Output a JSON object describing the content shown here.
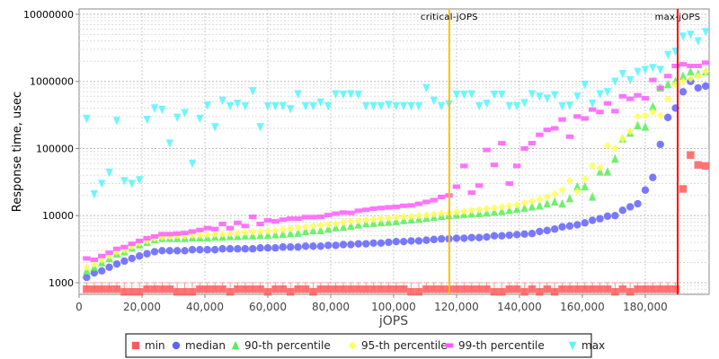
{
  "chart_data": {
    "type": "scatter",
    "title": "",
    "xlabel": "jOPS",
    "ylabel": "Response time, usec",
    "yscale": "log",
    "xlim": [
      0,
      200300
    ],
    "ylim": [
      670,
      12000000
    ],
    "grid": true,
    "legend_position": "bottom",
    "x_ticks": [
      0,
      20000,
      40000,
      60000,
      80000,
      100000,
      120000,
      140000,
      160000,
      180000
    ],
    "x_tick_labels": [
      "0",
      "20,000",
      "40,000",
      "60,000",
      "80,000",
      "100,000",
      "120,000",
      "140,000",
      "160,000",
      "180,000"
    ],
    "y_ticks": [
      1000,
      10000,
      100000,
      1000000,
      10000000
    ],
    "y_tick_labels": [
      "1000",
      "10000",
      "100000",
      "1000000",
      "10000000"
    ],
    "annotations": [
      {
        "label": "critical-jOPS",
        "x": 117700,
        "color": "#ffc000"
      },
      {
        "label": "max-jOPS",
        "x": 190300,
        "color": "#ff0000"
      }
    ],
    "x_step": 2400,
    "series": [
      {
        "name": "min",
        "marker": "square",
        "color": "#ff5a5a",
        "values": [
          800,
          800,
          800,
          800,
          800,
          730,
          730,
          730,
          800,
          800,
          800,
          800,
          730,
          730,
          730,
          800,
          800,
          800,
          800,
          730,
          800,
          800,
          800,
          800,
          730,
          800,
          800,
          730,
          800,
          800,
          730,
          800,
          800,
          800,
          800,
          800,
          800,
          800,
          800,
          800,
          800,
          800,
          800,
          730,
          730,
          800,
          800,
          800,
          800,
          800,
          800,
          800,
          800,
          800,
          730,
          730,
          800,
          800,
          730,
          800,
          730,
          800,
          730,
          800,
          800,
          800,
          800,
          800,
          800,
          800,
          730,
          800,
          730,
          800,
          800,
          800,
          800,
          800,
          800,
          25000,
          80000,
          57000,
          55000
        ]
      },
      {
        "name": "median",
        "marker": "circle",
        "color": "#6262ff",
        "values": [
          1200,
          1400,
          1500,
          1700,
          1900,
          2100,
          2300,
          2500,
          2700,
          2900,
          3000,
          3000,
          3000,
          3000,
          3100,
          3100,
          3100,
          3100,
          3200,
          3200,
          3200,
          3200,
          3200,
          3300,
          3300,
          3300,
          3400,
          3400,
          3400,
          3500,
          3500,
          3500,
          3600,
          3600,
          3700,
          3700,
          3800,
          3800,
          3900,
          3900,
          4000,
          4100,
          4100,
          4200,
          4200,
          4300,
          4400,
          4500,
          4500,
          4600,
          4600,
          4700,
          4700,
          4800,
          5000,
          5000,
          5100,
          5200,
          5300,
          5400,
          5800,
          6000,
          6300,
          6800,
          7000,
          7300,
          7800,
          8500,
          9000,
          9800,
          10000,
          12000,
          13500,
          15000,
          24000,
          37000,
          115000,
          290000,
          400000,
          700000,
          1000000,
          800000,
          850000
        ]
      },
      {
        "name": "90-th percentile",
        "marker": "triangle-up",
        "color": "#55ee55",
        "values": [
          1500,
          1700,
          2000,
          2300,
          2700,
          2900,
          3300,
          3700,
          4000,
          4400,
          4600,
          4600,
          4600,
          4600,
          4700,
          4700,
          4700,
          4800,
          4800,
          4900,
          4900,
          5000,
          5000,
          5100,
          5100,
          5200,
          5300,
          5400,
          5500,
          5800,
          6000,
          6000,
          6300,
          6600,
          6700,
          7000,
          7300,
          7600,
          7700,
          7900,
          8000,
          8200,
          8500,
          8700,
          8900,
          9200,
          9500,
          9800,
          10000,
          10300,
          10500,
          10600,
          10800,
          11000,
          11300,
          11600,
          12000,
          12500,
          13000,
          13500,
          14000,
          15000,
          16000,
          15000,
          18000,
          27000,
          27000,
          19000,
          45000,
          45000,
          70000,
          140000,
          170000,
          220000,
          210000,
          420000,
          800000,
          900000,
          1000000,
          1200000,
          1400000,
          1300000,
          1400000
        ]
      },
      {
        "name": "95-th percentile",
        "marker": "diamond",
        "color": "#ffff55",
        "values": [
          1700,
          1900,
          2200,
          2500,
          2900,
          3100,
          3500,
          3900,
          4200,
          4600,
          4800,
          4900,
          5000,
          5000,
          5100,
          5100,
          5200,
          5300,
          5300,
          5400,
          5500,
          5600,
          5700,
          5800,
          5900,
          6000,
          6200,
          6400,
          6600,
          6800,
          7000,
          7200,
          7400,
          7600,
          7900,
          8200,
          8400,
          8600,
          8800,
          9000,
          9200,
          9400,
          9600,
          9800,
          10000,
          10200,
          10500,
          10800,
          11000,
          11300,
          11600,
          12000,
          12300,
          12700,
          13000,
          13500,
          14000,
          14500,
          15500,
          16500,
          17500,
          19000,
          21000,
          24000,
          33000,
          23000,
          35000,
          55000,
          52000,
          110000,
          100000,
          140000,
          180000,
          300000,
          310000,
          350000,
          310000,
          550000,
          900000,
          1000000,
          1100000,
          1200000,
          1400000
        ]
      },
      {
        "name": "99-th percentile",
        "marker": "rect",
        "color": "#ff5aff",
        "values": [
          2300,
          2200,
          2500,
          2800,
          3200,
          3400,
          3800,
          4200,
          4600,
          4900,
          5300,
          5300,
          5400,
          5500,
          5800,
          6100,
          6500,
          6300,
          7500,
          6500,
          7800,
          7000,
          9600,
          7500,
          8500,
          8200,
          8700,
          9000,
          9000,
          9500,
          9500,
          9600,
          10200,
          10700,
          11100,
          11000,
          11800,
          12200,
          12700,
          13000,
          13300,
          13500,
          14000,
          14200,
          15000,
          16000,
          17000,
          19000,
          20000,
          27000,
          55000,
          22000,
          28000,
          95000,
          57000,
          120000,
          30000,
          55000,
          100000,
          120000,
          160000,
          190000,
          200000,
          270000,
          150000,
          300000,
          280000,
          380000,
          350000,
          470000,
          360000,
          600000,
          550000,
          620000,
          560000,
          1050000,
          800000,
          1200000,
          1700000,
          1800000,
          1700000,
          1700000,
          1900000
        ]
      },
      {
        "name": "max",
        "marker": "triangle-down",
        "color": "#55f5ff",
        "values": [
          280000,
          21000,
          30000,
          44000,
          260000,
          33000,
          30000,
          34000,
          270000,
          400000,
          380000,
          120000,
          290000,
          340000,
          60000,
          280000,
          440000,
          210000,
          520000,
          430000,
          470000,
          430000,
          720000,
          210000,
          430000,
          430000,
          430000,
          390000,
          650000,
          430000,
          430000,
          490000,
          430000,
          650000,
          640000,
          650000,
          640000,
          430000,
          430000,
          430000,
          450000,
          430000,
          430000,
          430000,
          430000,
          800000,
          520000,
          430000,
          460000,
          640000,
          640000,
          650000,
          430000,
          470000,
          640000,
          640000,
          430000,
          430000,
          480000,
          650000,
          600000,
          560000,
          630000,
          430000,
          440000,
          600000,
          900000,
          470000,
          650000,
          700000,
          1000000,
          1300000,
          1050000,
          1400000,
          1500000,
          1600000,
          1500000,
          2500000,
          2800000,
          4700000,
          5000000,
          4000000,
          5500000
        ]
      }
    ]
  }
}
